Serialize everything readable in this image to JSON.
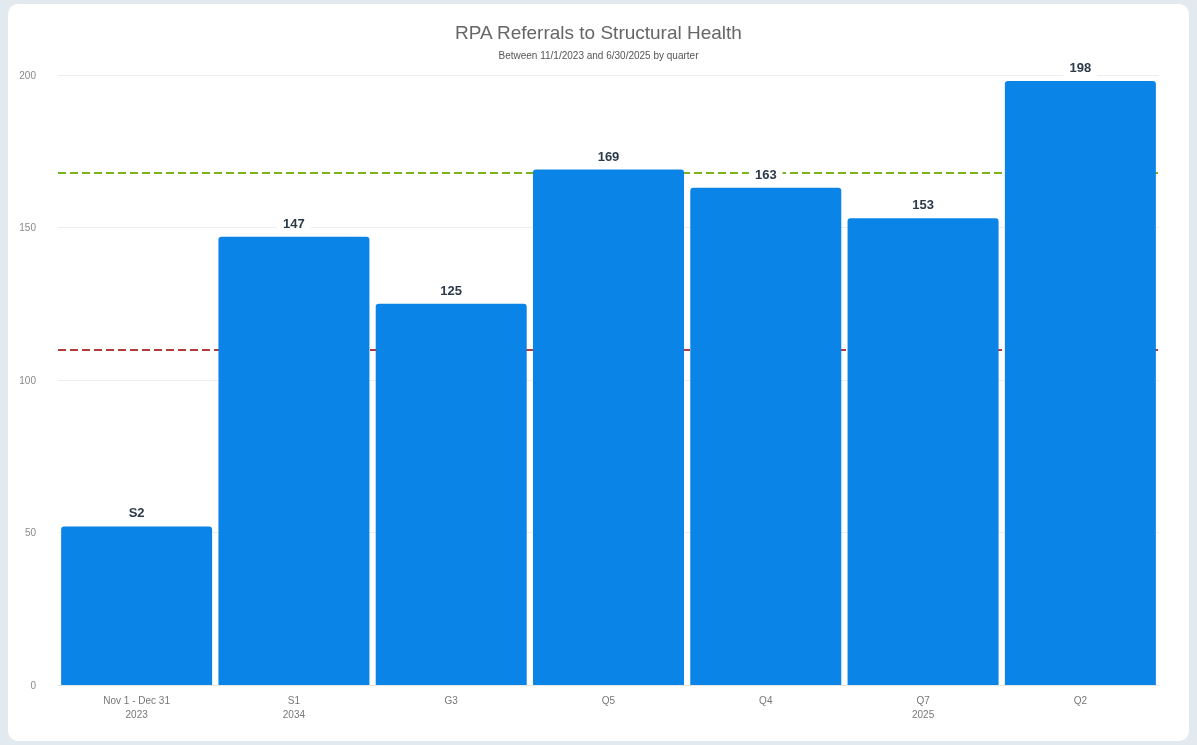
{
  "chart_data": {
    "type": "bar",
    "title": "RPA Referrals to Structural Health",
    "subtitle": "Between 11/1/2023 and 6/30/2025 by quarter",
    "categories": [
      "Nov 1 - Dec 31\n2023",
      "S1\n2034",
      "G3",
      "Q5",
      "Q4",
      "Q7\n2025",
      "Q2"
    ],
    "values": [
      52,
      147,
      125,
      169,
      163,
      153,
      198
    ],
    "value_labels": [
      "S2",
      "147",
      "125",
      "169",
      "163",
      "153",
      "198"
    ],
    "color": "#0a84e6",
    "ylim": [
      0,
      200
    ],
    "yticks": [
      0,
      50,
      100,
      150,
      200
    ],
    "grid": "y",
    "ref_lines": [
      {
        "axis": "y",
        "value": 168,
        "color": "#7cb518",
        "line_style": "dashed"
      },
      {
        "axis": "y",
        "value": 110,
        "color": "#b23a3a",
        "line_style": "dashed"
      }
    ]
  }
}
